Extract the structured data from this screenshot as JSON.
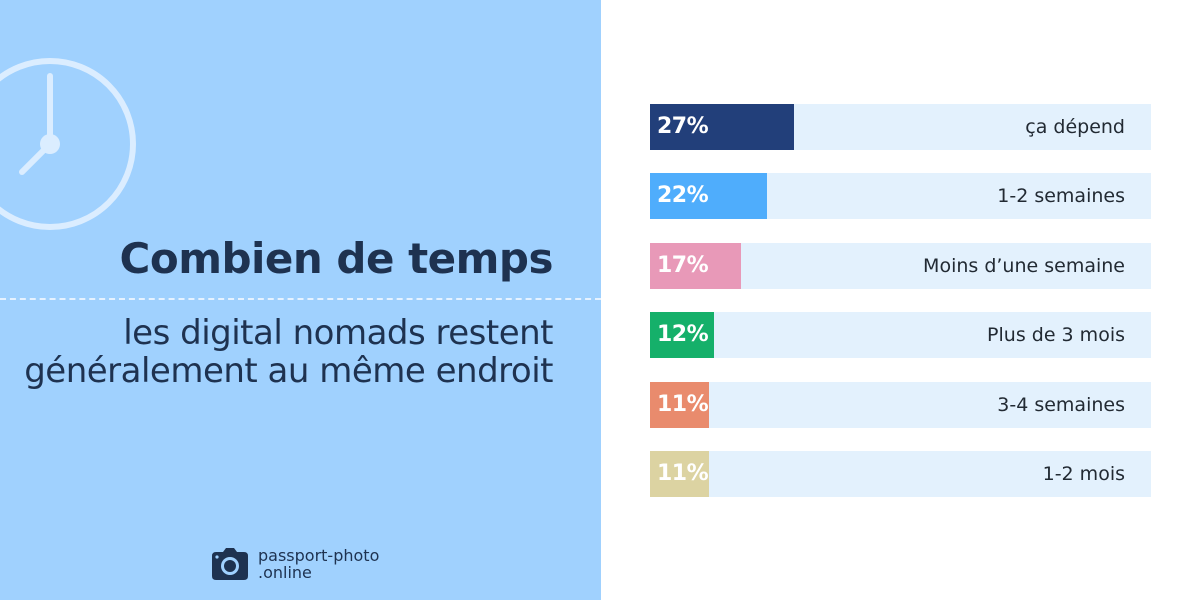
{
  "heading": {
    "title": "Combien de temps",
    "subtitle": "les digital nomads restent généralement au même endroit"
  },
  "logo": {
    "icon": "camera-icon",
    "line1": "passport-photo",
    "line2": ".online"
  },
  "decoration": {
    "icon": "clock-icon"
  },
  "colors": {
    "panel_bg": "#a0d1fe",
    "track_bg": "#e3f1fd",
    "text_dark": "#1e3250"
  },
  "chart_data": {
    "type": "bar",
    "orientation": "horizontal",
    "categories": [
      "ça dépend",
      "1-2 semaines",
      "Moins d’une semaine",
      "Plus de 3 mois",
      "3-4 semaines",
      "1-2 mois"
    ],
    "values": [
      27,
      22,
      17,
      12,
      11,
      11
    ],
    "value_labels": [
      "27%",
      "22%",
      "17%",
      "12%",
      "11%",
      "11%"
    ],
    "colors": [
      "#223f7a",
      "#4fadfc",
      "#e899b8",
      "#15b06a",
      "#e98b6d",
      "#dcd3a2"
    ],
    "unit": "%",
    "xlim": [
      0,
      100
    ],
    "grid": false,
    "legend": "none"
  }
}
